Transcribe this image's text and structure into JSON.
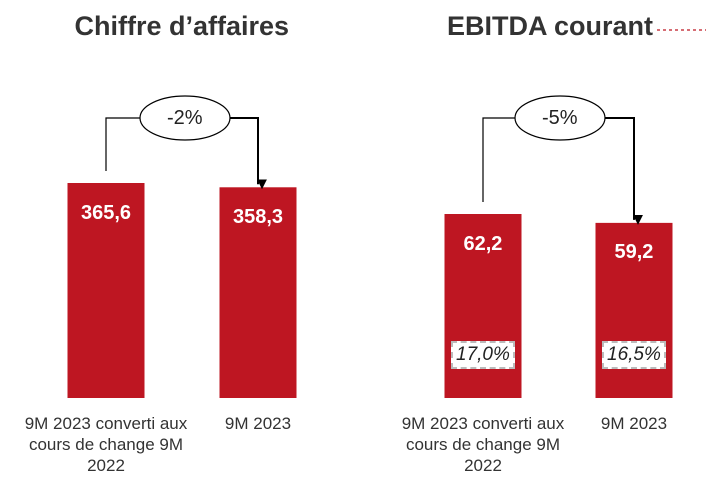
{
  "chart_data": [
    {
      "type": "bar",
      "title": "Chiffre d’affaires",
      "categories": [
        "9M 2023 converti aux cours de change 9M 2022",
        "9M 2023"
      ],
      "values": [
        365.6,
        358.3
      ],
      "value_labels": [
        "365,6",
        "358,3"
      ],
      "color": "#be1622",
      "annotation": "-2%"
    },
    {
      "type": "bar",
      "title": "EBITDA courant",
      "categories": [
        "9M 2023 converti aux cours de change 9M 2022",
        "9M 2023"
      ],
      "values": [
        62.2,
        59.2
      ],
      "value_labels": [
        "62,2",
        "59,2"
      ],
      "color": "#be1622",
      "annotation": "-5%",
      "margin_labels": [
        "17,0%",
        "16,5%"
      ]
    }
  ]
}
